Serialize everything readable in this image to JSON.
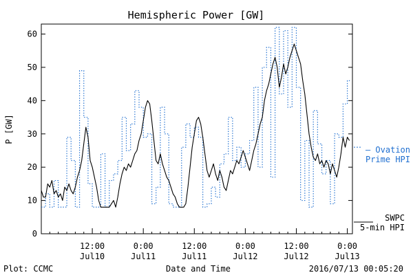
{
  "chart_data": {
    "type": "line",
    "title": "Hemispheric Power [GW]",
    "ylabel": "P [GW]",
    "xlabel": "Date and Time",
    "ylim": [
      0,
      63
    ],
    "yticks": [
      0,
      10,
      20,
      30,
      40,
      50,
      60
    ],
    "xlim_hours": [
      0,
      72
    ],
    "xticks": [
      {
        "hour": 12,
        "time": "12:00",
        "date": "Jul10"
      },
      {
        "hour": 24,
        "time": "0:00",
        "date": "Jul11"
      },
      {
        "hour": 36,
        "time": "12:00",
        "date": "Jul11"
      },
      {
        "hour": 48,
        "time": "0:00",
        "date": "Jul12"
      },
      {
        "hour": 60,
        "time": "12:00",
        "date": "Jul12"
      },
      {
        "hour": 72,
        "time": "0:00",
        "date": "Jul13"
      }
    ],
    "series": [
      {
        "name": "SWPC 5-min HPI",
        "legend_line1": "SWPC",
        "legend_line2": "5-min HPI",
        "color": "#000000",
        "style": "solid",
        "points": [
          [
            0,
            13
          ],
          [
            0.5,
            11
          ],
          [
            1,
            11
          ],
          [
            1.5,
            15
          ],
          [
            2,
            14
          ],
          [
            2.5,
            16
          ],
          [
            3,
            12
          ],
          [
            3.5,
            13
          ],
          [
            4,
            11
          ],
          [
            4.5,
            12
          ],
          [
            5,
            10
          ],
          [
            5.5,
            14
          ],
          [
            6,
            13
          ],
          [
            6.5,
            15
          ],
          [
            7,
            13
          ],
          [
            7.5,
            12
          ],
          [
            8,
            14
          ],
          [
            8.5,
            17
          ],
          [
            9,
            19
          ],
          [
            9.5,
            22
          ],
          [
            10,
            27
          ],
          [
            10.5,
            32
          ],
          [
            11,
            29
          ],
          [
            11.5,
            22
          ],
          [
            12,
            20
          ],
          [
            12.5,
            17
          ],
          [
            13,
            14
          ],
          [
            13.5,
            10
          ],
          [
            14,
            8
          ],
          [
            14.5,
            8
          ],
          [
            15,
            8
          ],
          [
            15.5,
            8
          ],
          [
            16,
            8
          ],
          [
            16.5,
            9
          ],
          [
            17,
            10
          ],
          [
            17.5,
            8
          ],
          [
            18,
            11
          ],
          [
            18.5,
            15
          ],
          [
            19,
            18
          ],
          [
            19.5,
            20
          ],
          [
            20,
            19
          ],
          [
            20.5,
            21
          ],
          [
            21,
            20
          ],
          [
            21.5,
            22
          ],
          [
            22,
            24
          ],
          [
            22.5,
            25
          ],
          [
            23,
            28
          ],
          [
            23.5,
            30
          ],
          [
            24,
            34
          ],
          [
            24.5,
            38
          ],
          [
            25,
            40
          ],
          [
            25.5,
            39
          ],
          [
            26,
            34
          ],
          [
            26.5,
            28
          ],
          [
            27,
            22
          ],
          [
            27.5,
            21
          ],
          [
            28,
            24
          ],
          [
            28.5,
            21
          ],
          [
            29,
            19
          ],
          [
            29.5,
            17
          ],
          [
            30,
            16
          ],
          [
            30.5,
            14
          ],
          [
            31,
            12
          ],
          [
            31.5,
            11
          ],
          [
            32,
            9
          ],
          [
            32.5,
            8
          ],
          [
            33,
            8
          ],
          [
            33.5,
            8
          ],
          [
            34,
            9
          ],
          [
            34.5,
            14
          ],
          [
            35,
            20
          ],
          [
            35.5,
            26
          ],
          [
            36,
            30
          ],
          [
            36.5,
            34
          ],
          [
            37,
            35
          ],
          [
            37.5,
            33
          ],
          [
            38,
            29
          ],
          [
            38.5,
            24
          ],
          [
            39,
            19
          ],
          [
            39.5,
            17
          ],
          [
            40,
            19
          ],
          [
            40.5,
            21
          ],
          [
            41,
            18
          ],
          [
            41.5,
            16
          ],
          [
            42,
            19
          ],
          [
            42.5,
            17
          ],
          [
            43,
            14
          ],
          [
            43.5,
            13
          ],
          [
            44,
            16
          ],
          [
            44.5,
            19
          ],
          [
            45,
            18
          ],
          [
            45.5,
            20
          ],
          [
            46,
            22
          ],
          [
            46.5,
            21
          ],
          [
            47,
            23
          ],
          [
            47.5,
            25
          ],
          [
            48,
            23
          ],
          [
            48.5,
            21
          ],
          [
            49,
            19
          ],
          [
            49.5,
            22
          ],
          [
            50,
            25
          ],
          [
            50.5,
            27
          ],
          [
            51,
            30
          ],
          [
            51.5,
            33
          ],
          [
            52,
            35
          ],
          [
            52.5,
            40
          ],
          [
            53,
            43
          ],
          [
            53.5,
            45
          ],
          [
            54,
            48
          ],
          [
            54.5,
            51
          ],
          [
            55,
            53
          ],
          [
            55.5,
            50
          ],
          [
            56,
            44
          ],
          [
            56.5,
            47
          ],
          [
            57,
            51
          ],
          [
            57.5,
            48
          ],
          [
            58,
            50
          ],
          [
            58.5,
            53
          ],
          [
            59,
            55
          ],
          [
            59.5,
            57
          ],
          [
            60,
            55
          ],
          [
            60.5,
            53
          ],
          [
            61,
            51
          ],
          [
            61.5,
            46
          ],
          [
            62,
            42
          ],
          [
            62.5,
            36
          ],
          [
            63,
            30
          ],
          [
            63.5,
            26
          ],
          [
            64,
            23
          ],
          [
            64.5,
            22
          ],
          [
            65,
            24
          ],
          [
            65.5,
            21
          ],
          [
            66,
            22
          ],
          [
            66.5,
            20
          ],
          [
            67,
            22
          ],
          [
            67.5,
            21
          ],
          [
            68,
            18
          ],
          [
            68.5,
            21
          ],
          [
            69,
            19
          ],
          [
            69.5,
            17
          ],
          [
            70,
            20
          ],
          [
            70.5,
            24
          ],
          [
            71,
            29
          ],
          [
            71.5,
            26
          ],
          [
            72,
            29
          ],
          [
            72.5,
            28
          ]
        ]
      },
      {
        "name": "Ovation Prime HPI",
        "legend_line1": "— Ovation",
        "legend_line2": "Prime HPI",
        "color": "#1f6fd0",
        "style": "dotted",
        "steps": [
          [
            0,
            8
          ],
          [
            1,
            12
          ],
          [
            2,
            8
          ],
          [
            3,
            16
          ],
          [
            4,
            8
          ],
          [
            6,
            29
          ],
          [
            7,
            22
          ],
          [
            8,
            8
          ],
          [
            9,
            49
          ],
          [
            10,
            35
          ],
          [
            11,
            15
          ],
          [
            12,
            8
          ],
          [
            13,
            8
          ],
          [
            14,
            24
          ],
          [
            15,
            8
          ],
          [
            16,
            16
          ],
          [
            17,
            18
          ],
          [
            18,
            22
          ],
          [
            19,
            35
          ],
          [
            20,
            25
          ],
          [
            21,
            33
          ],
          [
            22,
            43
          ],
          [
            23,
            38
          ],
          [
            24,
            29
          ],
          [
            25,
            30
          ],
          [
            26,
            9
          ],
          [
            27,
            14
          ],
          [
            28,
            38
          ],
          [
            29,
            30
          ],
          [
            30,
            9
          ],
          [
            31,
            8
          ],
          [
            32,
            8
          ],
          [
            33,
            26
          ],
          [
            34,
            33
          ],
          [
            35,
            29
          ],
          [
            36,
            32
          ],
          [
            37,
            29
          ],
          [
            38,
            8
          ],
          [
            39,
            9
          ],
          [
            40,
            14
          ],
          [
            41,
            11
          ],
          [
            42,
            21
          ],
          [
            43,
            24
          ],
          [
            44,
            35
          ],
          [
            45,
            22
          ],
          [
            46,
            26
          ],
          [
            47,
            20
          ],
          [
            48,
            24
          ],
          [
            49,
            28
          ],
          [
            50,
            44
          ],
          [
            51,
            20
          ],
          [
            52,
            50
          ],
          [
            53,
            56
          ],
          [
            54,
            17
          ],
          [
            55,
            62
          ],
          [
            56,
            42
          ],
          [
            57,
            61
          ],
          [
            58,
            38
          ],
          [
            59,
            62
          ],
          [
            60,
            44
          ],
          [
            61,
            10
          ],
          [
            62,
            28
          ],
          [
            63,
            8
          ],
          [
            64,
            37
          ],
          [
            65,
            27
          ],
          [
            66,
            18
          ],
          [
            67,
            22
          ],
          [
            68,
            9
          ],
          [
            69,
            30
          ],
          [
            70,
            29
          ],
          [
            71,
            39
          ],
          [
            72,
            46
          ]
        ]
      }
    ],
    "footer_left": "Plot: CCMC",
    "footer_right": "2016/07/13 00:05:20"
  }
}
